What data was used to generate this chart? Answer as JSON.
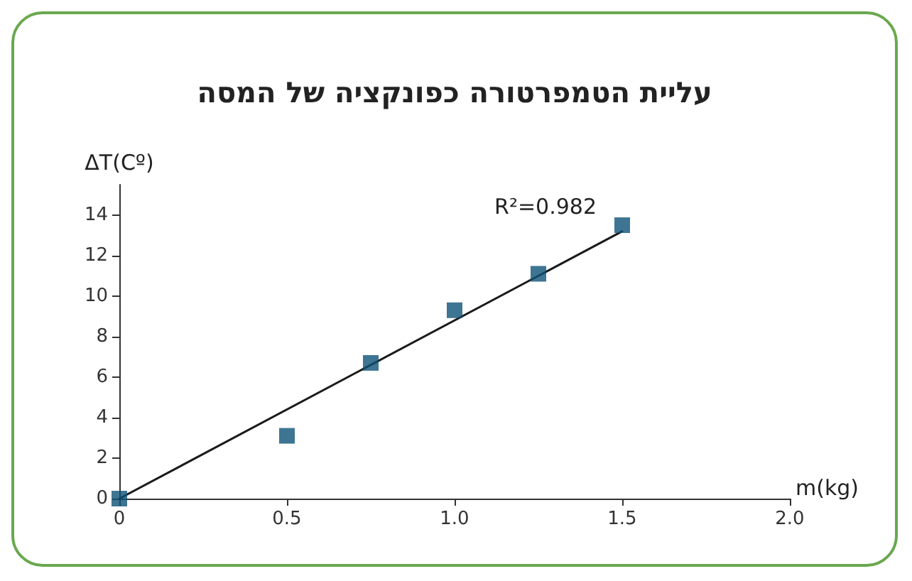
{
  "chart_data": {
    "type": "scatter",
    "title": "עליית הטמפרטורה כפונקציה של המסה",
    "xlabel": "m(kg)",
    "ylabel": "ΔT(Cº)",
    "x": [
      0,
      0.5,
      0.75,
      1.0,
      1.25,
      1.5
    ],
    "series": [
      {
        "color": "#0e5278",
        "marker": "square",
        "values": [
          0,
          3.1,
          6.7,
          9.3,
          11.1,
          13.5
        ]
      },
      {
        "type": "line",
        "color": "#1a1a1a",
        "marker": "none",
        "line_style": "solid",
        "x": [
          0,
          1.5
        ],
        "values": [
          0,
          13.2
        ]
      }
    ],
    "xlim": [
      0,
      2
    ],
    "xticks": [
      0,
      0.5,
      {
        "value": 1,
        "label": "1.0"
      },
      1.5,
      {
        "value": 2,
        "label": "2.0"
      }
    ],
    "ylim": [
      0,
      15.5
    ],
    "yticks": [
      0,
      2,
      4,
      6,
      8,
      10,
      12,
      14
    ],
    "grid": false,
    "annotations": [
      "R²=0.982"
    ]
  }
}
